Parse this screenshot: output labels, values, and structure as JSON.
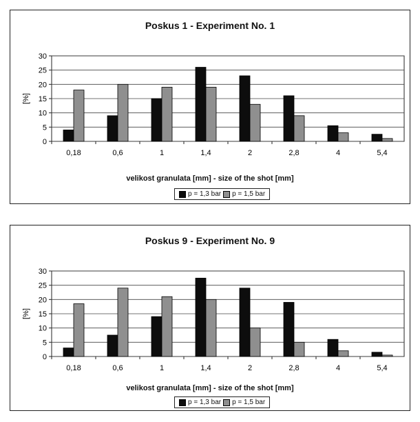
{
  "chart_data": [
    {
      "type": "bar",
      "title": "Poskus 1 - Experiment No. 1",
      "xlabel": "velikost granulata [mm]  -  size of the shot [mm]",
      "ylabel": "[%]",
      "categories": [
        "0,18",
        "0,6",
        "1",
        "1,4",
        "2",
        "2,8",
        "4",
        "5,4"
      ],
      "ylim": [
        0,
        30
      ],
      "yticks": [
        "0",
        "5",
        "10",
        "15",
        "20",
        "25",
        "30"
      ],
      "grid": true,
      "legend_position": "bottom",
      "series": [
        {
          "name": "p = 1,3 bar",
          "color": "#0d0d0d",
          "values": [
            4,
            9,
            15,
            26,
            23,
            16,
            5.5,
            2.5
          ]
        },
        {
          "name": "p = 1,5 bar",
          "color": "#8f8f8f",
          "values": [
            18,
            20,
            19,
            19,
            13,
            9,
            3,
            1
          ]
        }
      ]
    },
    {
      "type": "bar",
      "title": "Poskus 9 - Experiment No. 9",
      "xlabel": "velikost granulata [mm] - size of the shot [mm]",
      "ylabel": "[%]",
      "categories": [
        "0,18",
        "0,6",
        "1",
        "1,4",
        "2",
        "2,8",
        "4",
        "5,4"
      ],
      "ylim": [
        0,
        30
      ],
      "yticks": [
        "0",
        "5",
        "10",
        "15",
        "20",
        "25",
        "30"
      ],
      "grid": true,
      "legend_position": "bottom",
      "series": [
        {
          "name": "p = 1,3 bar",
          "color": "#0d0d0d",
          "values": [
            3,
            7.5,
            14,
            27.5,
            24,
            19,
            6,
            1.5
          ]
        },
        {
          "name": "p = 1,5 bar",
          "color": "#8f8f8f",
          "values": [
            18.5,
            24,
            21,
            20,
            10,
            5,
            2,
            0.5
          ]
        }
      ]
    }
  ]
}
